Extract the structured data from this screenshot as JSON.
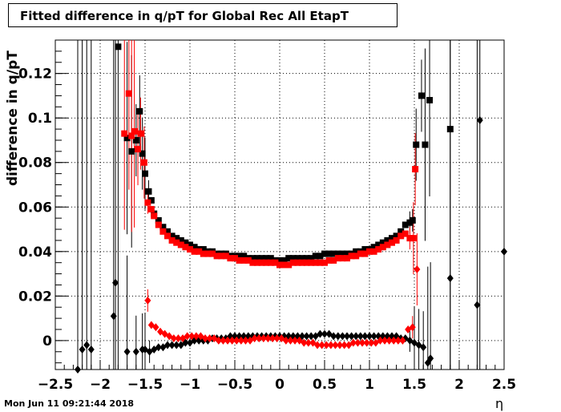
{
  "title": "Fitted difference in q/pT for Global Rec All EtapT",
  "timestamp": "Mon Jun 11 09:21:44 2018",
  "chart_data": {
    "type": "scatter",
    "title": "Fitted difference in q/pT for Global Rec All EtapT",
    "xlabel": "η",
    "ylabel": "difference in q/pT",
    "xlim": [
      -2.5,
      2.5
    ],
    "ylim": [
      -0.013,
      0.135
    ],
    "x_ticks": [
      "−2.5",
      "−2",
      "−1.5",
      "−1",
      "−0.5",
      "0",
      "0.5",
      "1",
      "1.5",
      "2",
      "2.5"
    ],
    "y_ticks": [
      "0",
      "0.02",
      "0.04",
      "0.06",
      "0.08",
      "0.1",
      "0.12"
    ],
    "x_tick_values": [
      -2.5,
      -2,
      -1.5,
      -1,
      -0.5,
      0,
      0.5,
      1,
      1.5,
      2,
      2.5
    ],
    "y_tick_values": [
      0,
      0.02,
      0.04,
      0.06,
      0.08,
      0.1,
      0.12
    ],
    "grid": true,
    "series": [
      {
        "color": "#000000",
        "marker": "square",
        "points": [
          [
            -1.8,
            0.132
          ],
          [
            -1.7,
            0.091
          ],
          [
            -1.65,
            0.085
          ],
          [
            -1.6,
            0.09
          ],
          [
            -1.56,
            0.103
          ],
          [
            -1.53,
            0.084
          ],
          [
            -1.5,
            0.075
          ],
          [
            -1.46,
            0.067
          ],
          [
            -1.43,
            0.063
          ],
          [
            -1.4,
            0.057
          ],
          [
            -1.35,
            0.054
          ],
          [
            -1.3,
            0.051
          ],
          [
            -1.25,
            0.049
          ],
          [
            -1.2,
            0.047
          ],
          [
            -1.15,
            0.046
          ],
          [
            -1.1,
            0.045
          ],
          [
            -1.05,
            0.044
          ],
          [
            -1.0,
            0.043
          ],
          [
            -0.95,
            0.042
          ],
          [
            -0.9,
            0.041
          ],
          [
            -0.85,
            0.041
          ],
          [
            -0.8,
            0.04
          ],
          [
            -0.75,
            0.04
          ],
          [
            -0.7,
            0.039
          ],
          [
            -0.65,
            0.039
          ],
          [
            -0.6,
            0.039
          ],
          [
            -0.55,
            0.038
          ],
          [
            -0.5,
            0.038
          ],
          [
            -0.45,
            0.038
          ],
          [
            -0.4,
            0.038
          ],
          [
            -0.35,
            0.037
          ],
          [
            -0.3,
            0.037
          ],
          [
            -0.25,
            0.037
          ],
          [
            -0.2,
            0.037
          ],
          [
            -0.15,
            0.037
          ],
          [
            -0.1,
            0.037
          ],
          [
            -0.05,
            0.036
          ],
          [
            0.0,
            0.036
          ],
          [
            0.05,
            0.036
          ],
          [
            0.1,
            0.037
          ],
          [
            0.15,
            0.037
          ],
          [
            0.2,
            0.037
          ],
          [
            0.25,
            0.037
          ],
          [
            0.3,
            0.037
          ],
          [
            0.35,
            0.037
          ],
          [
            0.4,
            0.038
          ],
          [
            0.45,
            0.038
          ],
          [
            0.5,
            0.039
          ],
          [
            0.55,
            0.039
          ],
          [
            0.6,
            0.039
          ],
          [
            0.65,
            0.039
          ],
          [
            0.7,
            0.039
          ],
          [
            0.75,
            0.039
          ],
          [
            0.8,
            0.039
          ],
          [
            0.85,
            0.04
          ],
          [
            0.9,
            0.04
          ],
          [
            0.95,
            0.041
          ],
          [
            1.0,
            0.041
          ],
          [
            1.05,
            0.042
          ],
          [
            1.1,
            0.043
          ],
          [
            1.15,
            0.044
          ],
          [
            1.2,
            0.045
          ],
          [
            1.25,
            0.046
          ],
          [
            1.3,
            0.047
          ],
          [
            1.35,
            0.049
          ],
          [
            1.4,
            0.052
          ],
          [
            1.45,
            0.053
          ],
          [
            1.48,
            0.054
          ],
          [
            1.52,
            0.088
          ],
          [
            1.58,
            0.11
          ],
          [
            1.62,
            0.088
          ],
          [
            1.67,
            0.108
          ],
          [
            1.9,
            0.095
          ]
        ]
      },
      {
        "color": "#ff0000",
        "marker": "square",
        "points": [
          [
            -1.73,
            0.093
          ],
          [
            -1.68,
            0.111
          ],
          [
            -1.65,
            0.092
          ],
          [
            -1.62,
            0.094
          ],
          [
            -1.58,
            0.086
          ],
          [
            -1.55,
            0.093
          ],
          [
            -1.51,
            0.08
          ],
          [
            -1.47,
            0.062
          ],
          [
            -1.43,
            0.059
          ],
          [
            -1.4,
            0.056
          ],
          [
            -1.35,
            0.052
          ],
          [
            -1.3,
            0.049
          ],
          [
            -1.25,
            0.047
          ],
          [
            -1.2,
            0.045
          ],
          [
            -1.15,
            0.044
          ],
          [
            -1.1,
            0.043
          ],
          [
            -1.05,
            0.042
          ],
          [
            -1.0,
            0.041
          ],
          [
            -0.95,
            0.04
          ],
          [
            -0.9,
            0.04
          ],
          [
            -0.85,
            0.039
          ],
          [
            -0.8,
            0.039
          ],
          [
            -0.75,
            0.039
          ],
          [
            -0.7,
            0.038
          ],
          [
            -0.65,
            0.038
          ],
          [
            -0.6,
            0.038
          ],
          [
            -0.55,
            0.037
          ],
          [
            -0.5,
            0.037
          ],
          [
            -0.45,
            0.036
          ],
          [
            -0.4,
            0.036
          ],
          [
            -0.35,
            0.036
          ],
          [
            -0.3,
            0.035
          ],
          [
            -0.25,
            0.035
          ],
          [
            -0.2,
            0.035
          ],
          [
            -0.15,
            0.035
          ],
          [
            -0.1,
            0.035
          ],
          [
            -0.05,
            0.035
          ],
          [
            0.0,
            0.034
          ],
          [
            0.05,
            0.034
          ],
          [
            0.1,
            0.034
          ],
          [
            0.15,
            0.035
          ],
          [
            0.2,
            0.035
          ],
          [
            0.25,
            0.035
          ],
          [
            0.3,
            0.035
          ],
          [
            0.35,
            0.035
          ],
          [
            0.4,
            0.035
          ],
          [
            0.45,
            0.035
          ],
          [
            0.5,
            0.035
          ],
          [
            0.55,
            0.036
          ],
          [
            0.6,
            0.036
          ],
          [
            0.65,
            0.037
          ],
          [
            0.7,
            0.037
          ],
          [
            0.75,
            0.037
          ],
          [
            0.8,
            0.038
          ],
          [
            0.85,
            0.038
          ],
          [
            0.9,
            0.039
          ],
          [
            0.95,
            0.039
          ],
          [
            1.0,
            0.04
          ],
          [
            1.05,
            0.04
          ],
          [
            1.1,
            0.041
          ],
          [
            1.15,
            0.042
          ],
          [
            1.2,
            0.043
          ],
          [
            1.25,
            0.044
          ],
          [
            1.3,
            0.045
          ],
          [
            1.35,
            0.047
          ],
          [
            1.4,
            0.048
          ],
          [
            1.45,
            0.046
          ],
          [
            1.49,
            0.046
          ],
          [
            1.51,
            0.077
          ]
        ]
      },
      {
        "color": "#000000",
        "marker": "diamond",
        "points": [
          [
            -2.25,
            -0.013
          ],
          [
            -2.2,
            -0.004
          ],
          [
            -2.15,
            -0.002
          ],
          [
            -2.1,
            -0.004
          ],
          [
            -1.85,
            0.011
          ],
          [
            -1.83,
            0.026
          ],
          [
            -1.7,
            -0.005
          ],
          [
            -1.6,
            -0.005
          ],
          [
            -1.53,
            -0.004
          ],
          [
            -1.5,
            -0.004
          ],
          [
            -1.45,
            -0.005
          ],
          [
            -1.4,
            -0.004
          ],
          [
            -1.35,
            -0.003
          ],
          [
            -1.3,
            -0.003
          ],
          [
            -1.25,
            -0.002
          ],
          [
            -1.2,
            -0.002
          ],
          [
            -1.15,
            -0.002
          ],
          [
            -1.1,
            -0.002
          ],
          [
            -1.05,
            -0.001
          ],
          [
            -1.0,
            -0.001
          ],
          [
            -0.95,
            0.0
          ],
          [
            -0.9,
            0.0
          ],
          [
            -0.85,
            0.0
          ],
          [
            -0.8,
            0.0
          ],
          [
            -0.75,
            0.001
          ],
          [
            -0.7,
            0.001
          ],
          [
            -0.65,
            0.001
          ],
          [
            -0.6,
            0.001
          ],
          [
            -0.55,
            0.002
          ],
          [
            -0.5,
            0.002
          ],
          [
            -0.45,
            0.002
          ],
          [
            -0.4,
            0.002
          ],
          [
            -0.35,
            0.002
          ],
          [
            -0.3,
            0.002
          ],
          [
            -0.25,
            0.002
          ],
          [
            -0.2,
            0.002
          ],
          [
            -0.15,
            0.002
          ],
          [
            -0.1,
            0.002
          ],
          [
            -0.05,
            0.002
          ],
          [
            0.0,
            0.002
          ],
          [
            0.05,
            0.002
          ],
          [
            0.1,
            0.002
          ],
          [
            0.15,
            0.002
          ],
          [
            0.2,
            0.002
          ],
          [
            0.25,
            0.002
          ],
          [
            0.3,
            0.002
          ],
          [
            0.35,
            0.002
          ],
          [
            0.4,
            0.002
          ],
          [
            0.45,
            0.003
          ],
          [
            0.5,
            0.003
          ],
          [
            0.55,
            0.003
          ],
          [
            0.6,
            0.002
          ],
          [
            0.65,
            0.002
          ],
          [
            0.7,
            0.002
          ],
          [
            0.75,
            0.002
          ],
          [
            0.8,
            0.002
          ],
          [
            0.85,
            0.002
          ],
          [
            0.9,
            0.002
          ],
          [
            0.95,
            0.002
          ],
          [
            1.0,
            0.002
          ],
          [
            1.05,
            0.002
          ],
          [
            1.1,
            0.002
          ],
          [
            1.15,
            0.002
          ],
          [
            1.2,
            0.002
          ],
          [
            1.25,
            0.002
          ],
          [
            1.3,
            0.002
          ],
          [
            1.35,
            0.001
          ],
          [
            1.4,
            0.001
          ],
          [
            1.45,
            0.0
          ],
          [
            1.5,
            -0.001
          ],
          [
            1.55,
            -0.002
          ],
          [
            1.6,
            -0.003
          ],
          [
            1.65,
            -0.01
          ],
          [
            1.68,
            -0.008
          ],
          [
            1.9,
            0.028
          ],
          [
            2.2,
            0.016
          ],
          [
            2.23,
            0.099
          ],
          [
            2.5,
            0.04
          ]
        ]
      },
      {
        "color": "#ff0000",
        "marker": "diamond",
        "points": [
          [
            -1.47,
            0.018
          ],
          [
            -1.43,
            0.007
          ],
          [
            -1.38,
            0.006
          ],
          [
            -1.33,
            0.004
          ],
          [
            -1.28,
            0.003
          ],
          [
            -1.23,
            0.002
          ],
          [
            -1.18,
            0.001
          ],
          [
            -1.13,
            0.001
          ],
          [
            -1.08,
            0.001
          ],
          [
            -1.03,
            0.002
          ],
          [
            -0.98,
            0.002
          ],
          [
            -0.93,
            0.002
          ],
          [
            -0.88,
            0.002
          ],
          [
            -0.83,
            0.001
          ],
          [
            -0.78,
            0.001
          ],
          [
            -0.73,
            0.001
          ],
          [
            -0.68,
            0.0
          ],
          [
            -0.63,
            0.0
          ],
          [
            -0.58,
            0.0
          ],
          [
            -0.53,
            0.0
          ],
          [
            -0.48,
            0.0
          ],
          [
            -0.43,
            0.0
          ],
          [
            -0.38,
            0.0
          ],
          [
            -0.33,
            0.0
          ],
          [
            -0.28,
            0.001
          ],
          [
            -0.23,
            0.001
          ],
          [
            -0.18,
            0.001
          ],
          [
            -0.13,
            0.001
          ],
          [
            -0.08,
            0.001
          ],
          [
            -0.03,
            0.001
          ],
          [
            0.02,
            0.001
          ],
          [
            0.07,
            0.0
          ],
          [
            0.12,
            0.0
          ],
          [
            0.17,
            0.0
          ],
          [
            0.22,
            0.0
          ],
          [
            0.27,
            -0.001
          ],
          [
            0.32,
            -0.001
          ],
          [
            0.37,
            -0.001
          ],
          [
            0.42,
            -0.002
          ],
          [
            0.47,
            -0.002
          ],
          [
            0.52,
            -0.002
          ],
          [
            0.57,
            -0.002
          ],
          [
            0.62,
            -0.002
          ],
          [
            0.67,
            -0.002
          ],
          [
            0.72,
            -0.002
          ],
          [
            0.77,
            -0.002
          ],
          [
            0.82,
            -0.001
          ],
          [
            0.87,
            -0.001
          ],
          [
            0.92,
            -0.001
          ],
          [
            0.97,
            -0.001
          ],
          [
            1.02,
            -0.001
          ],
          [
            1.07,
            -0.001
          ],
          [
            1.12,
            0.0
          ],
          [
            1.17,
            0.0
          ],
          [
            1.22,
            0.0
          ],
          [
            1.27,
            0.0
          ],
          [
            1.32,
            0.0
          ],
          [
            1.37,
            0.0
          ],
          [
            1.43,
            0.005
          ],
          [
            1.48,
            0.006
          ],
          [
            1.53,
            0.032
          ]
        ]
      }
    ]
  }
}
